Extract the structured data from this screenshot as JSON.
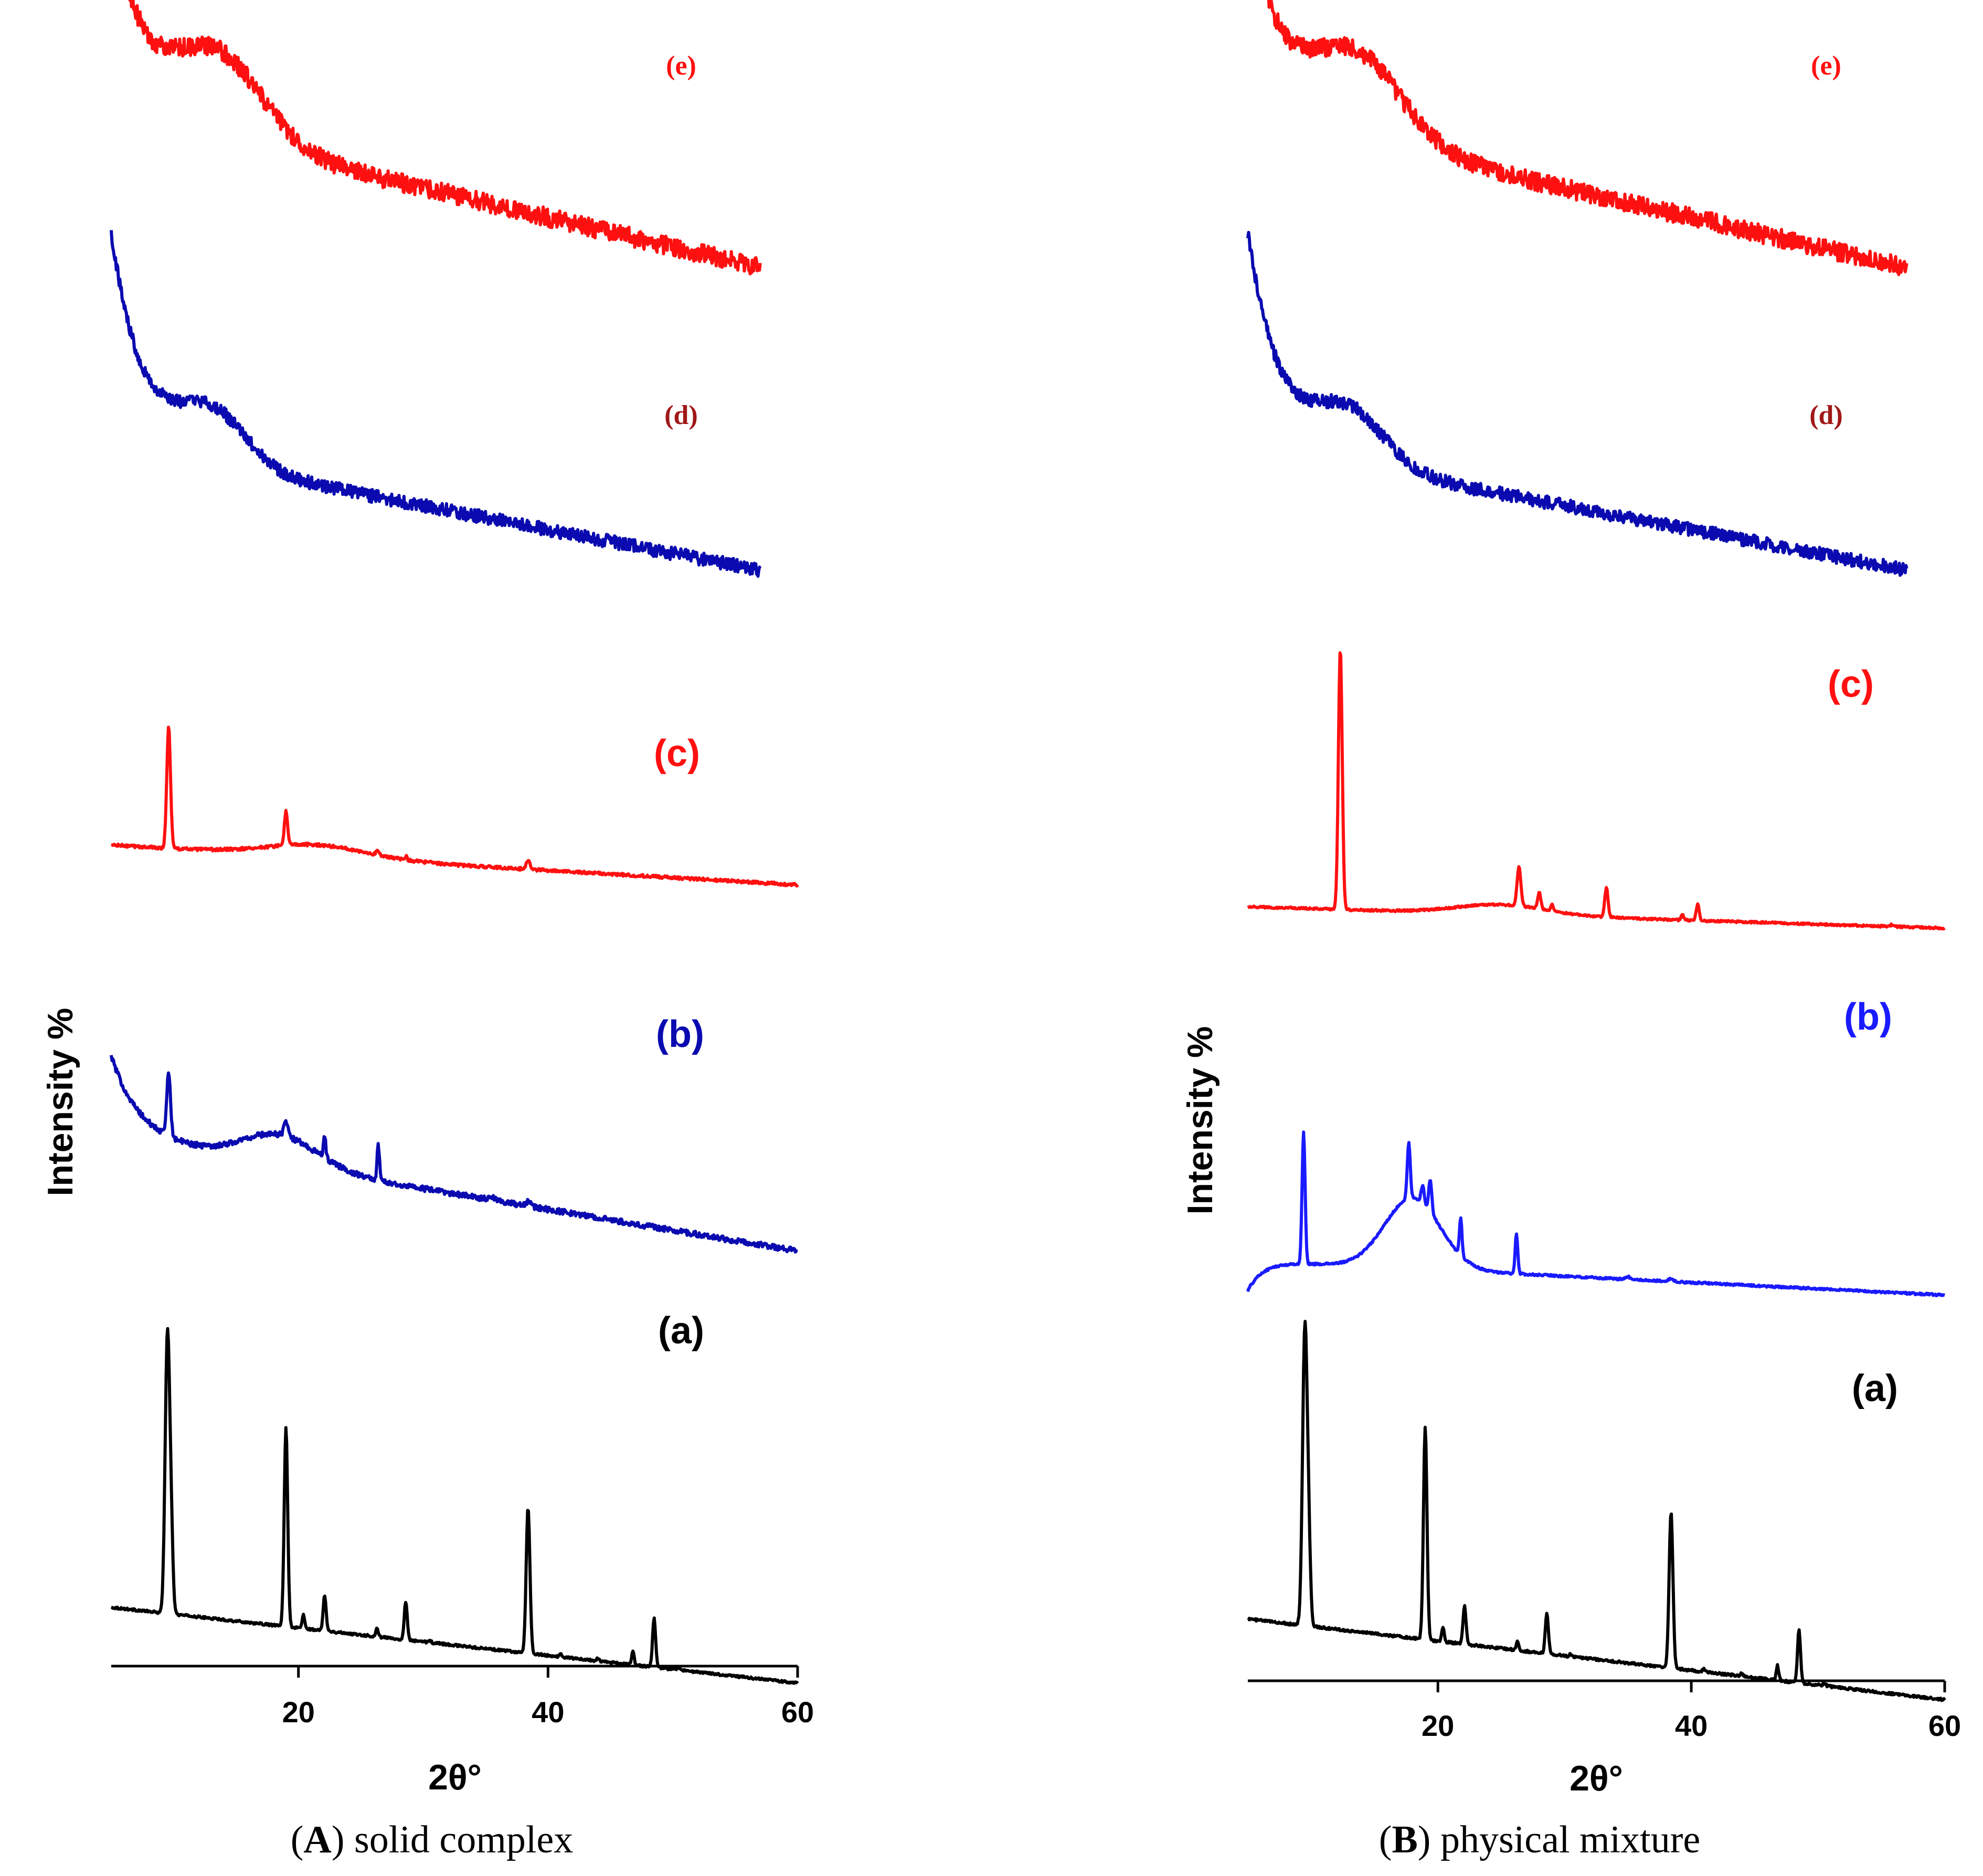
{
  "figure": {
    "colors": {
      "a": "#000000",
      "b_A": "#0a0ab0",
      "b_B": "#1a1aff",
      "c": "#ff1010",
      "d": "#0a0ab0",
      "e": "#ff1010",
      "d_label": "#a01818",
      "e_label": "#ff1010"
    }
  },
  "chart_data": [
    {
      "type": "line",
      "panel": "A",
      "caption_letter": "A",
      "caption_text": ") solid complex",
      "caption_paren": "(",
      "xlabel": "2θ°",
      "ylabel": "Intensity %",
      "xlim": [
        5,
        60
      ],
      "xticks": [
        "20",
        "40",
        "60"
      ],
      "series": [
        {
          "name": "(a)",
          "baseline": 0.08,
          "slope": -0.005,
          "hump": null,
          "noise": 0.004,
          "peaks": [
            [
              9.5,
              1.0,
              0.18
            ],
            [
              9.8,
              0.25,
              0.15
            ],
            [
              19.0,
              0.72,
              0.14
            ],
            [
              20.4,
              0.05,
              0.1
            ],
            [
              22.1,
              0.13,
              0.12
            ],
            [
              26.3,
              0.03,
              0.1
            ],
            [
              28.6,
              0.14,
              0.12
            ],
            [
              30.5,
              0.01,
              0.1
            ],
            [
              38.4,
              0.53,
              0.15
            ],
            [
              41,
              0.01,
              0.1
            ],
            [
              44,
              0.01,
              0.1
            ],
            [
              46.8,
              0.05,
              0.1
            ],
            [
              48.5,
              0.18,
              0.12
            ],
            [
              50.5,
              0.01,
              0.1
            ]
          ]
        },
        {
          "name": "(b)",
          "baseline": 0.52,
          "slope": -0.009,
          "hump": [
            18.5,
            0.13,
            3.0
          ],
          "start_rise": [
            0.35,
            2.2
          ],
          "noise": 0.012,
          "peaks": [
            [
              9.6,
              0.28,
              0.15
            ],
            [
              19.0,
              0.07,
              0.15
            ],
            [
              22.1,
              0.09,
              0.1
            ],
            [
              26.4,
              0.15,
              0.1
            ],
            [
              35.5,
              0.015,
              0.3
            ],
            [
              38.4,
              0.02,
              0.2
            ]
          ]
        },
        {
          "name": "(c)",
          "baseline": 0.26,
          "slope": -0.003,
          "hump": [
            21.5,
            0.05,
            4.0
          ],
          "noise": 0.006,
          "peaks": [
            [
              9.6,
              0.5,
              0.15
            ],
            [
              19.0,
              0.14,
              0.13
            ],
            [
              26.3,
              0.02,
              0.1
            ],
            [
              28.6,
              0.015,
              0.1
            ],
            [
              38.4,
              0.04,
              0.15
            ]
          ]
        },
        {
          "name": "(d)",
          "baseline": 0.4,
          "slope": -0.0065,
          "hump": [
            13.0,
            0.14,
            2.8
          ],
          "start_rise": [
            0.58,
            2.5
          ],
          "noise": 0.018,
          "peaks": [],
          "xmax": 57
        },
        {
          "name": "(e)",
          "baseline": 0.45,
          "slope": -0.0075,
          "hump": [
            13.5,
            0.21,
            3.6
          ],
          "start_rise": [
            0.5,
            2.6
          ],
          "noise": 0.024,
          "peaks": [],
          "xmax": 57
        }
      ]
    },
    {
      "type": "line",
      "panel": "B",
      "caption_letter": "B",
      "caption_text": ") physical mixture",
      "caption_paren": "(",
      "xlabel": "2θ°",
      "ylabel": "Intensity %",
      "xlim": [
        5,
        60
      ],
      "xticks": [
        "20",
        "40",
        "60"
      ],
      "series": [
        {
          "name": "(a)",
          "baseline": 0.08,
          "slope": -0.005,
          "hump": null,
          "noise": 0.004,
          "peaks": [
            [
              9.5,
              1.0,
              0.18
            ],
            [
              9.8,
              0.25,
              0.15
            ],
            [
              19.0,
              0.72,
              0.14
            ],
            [
              20.4,
              0.05,
              0.1
            ],
            [
              22.1,
              0.13,
              0.12
            ],
            [
              26.3,
              0.03,
              0.1
            ],
            [
              28.6,
              0.14,
              0.12
            ],
            [
              30.5,
              0.01,
              0.1
            ],
            [
              38.4,
              0.53,
              0.15
            ],
            [
              41,
              0.01,
              0.1
            ],
            [
              44,
              0.01,
              0.1
            ],
            [
              46.8,
              0.05,
              0.1
            ],
            [
              48.5,
              0.18,
              0.12
            ],
            [
              50.5,
              0.01,
              0.1
            ]
          ]
        },
        {
          "name": "(b)",
          "baseline": 0.1,
          "slope": -0.0025,
          "hump": [
            18.0,
            0.28,
            2.2
          ],
          "start_dip": [
            0.12,
            1.2
          ],
          "noise": 0.004,
          "peaks": [
            [
              9.4,
              0.52,
              0.12
            ],
            [
              17.7,
              0.22,
              0.12
            ],
            [
              18.8,
              0.07,
              0.12
            ],
            [
              19.4,
              0.13,
              0.12
            ],
            [
              21.8,
              0.15,
              0.1
            ],
            [
              26.2,
              0.16,
              0.1
            ],
            [
              35,
              0.01,
              0.2
            ],
            [
              38.4,
              0.01,
              0.2
            ]
          ]
        },
        {
          "name": "(c)",
          "baseline": 0.06,
          "slope": -0.0012,
          "hump": [
            25.0,
            0.03,
            3.5
          ],
          "noise": 0.003,
          "peaks": [
            [
              12.3,
              0.8,
              0.15
            ],
            [
              26.4,
              0.12,
              0.15
            ],
            [
              28.0,
              0.05,
              0.12
            ],
            [
              29.0,
              0.02,
              0.1
            ],
            [
              33.3,
              0.09,
              0.13
            ],
            [
              39.3,
              0.015,
              0.1
            ],
            [
              40.5,
              0.05,
              0.12
            ],
            [
              55.8,
              0.005,
              0.1
            ]
          ]
        },
        {
          "name": "(d)",
          "baseline": 0.4,
          "slope": -0.0065,
          "hump": [
            13.0,
            0.14,
            2.8
          ],
          "start_rise": [
            0.58,
            2.5
          ],
          "noise": 0.018,
          "peaks": [],
          "xmax": 57
        },
        {
          "name": "(e)",
          "baseline": 0.45,
          "slope": -0.0075,
          "hump": [
            13.5,
            0.21,
            3.6
          ],
          "start_rise": [
            0.5,
            2.6
          ],
          "noise": 0.024,
          "peaks": [],
          "xmax": 57
        }
      ]
    }
  ]
}
